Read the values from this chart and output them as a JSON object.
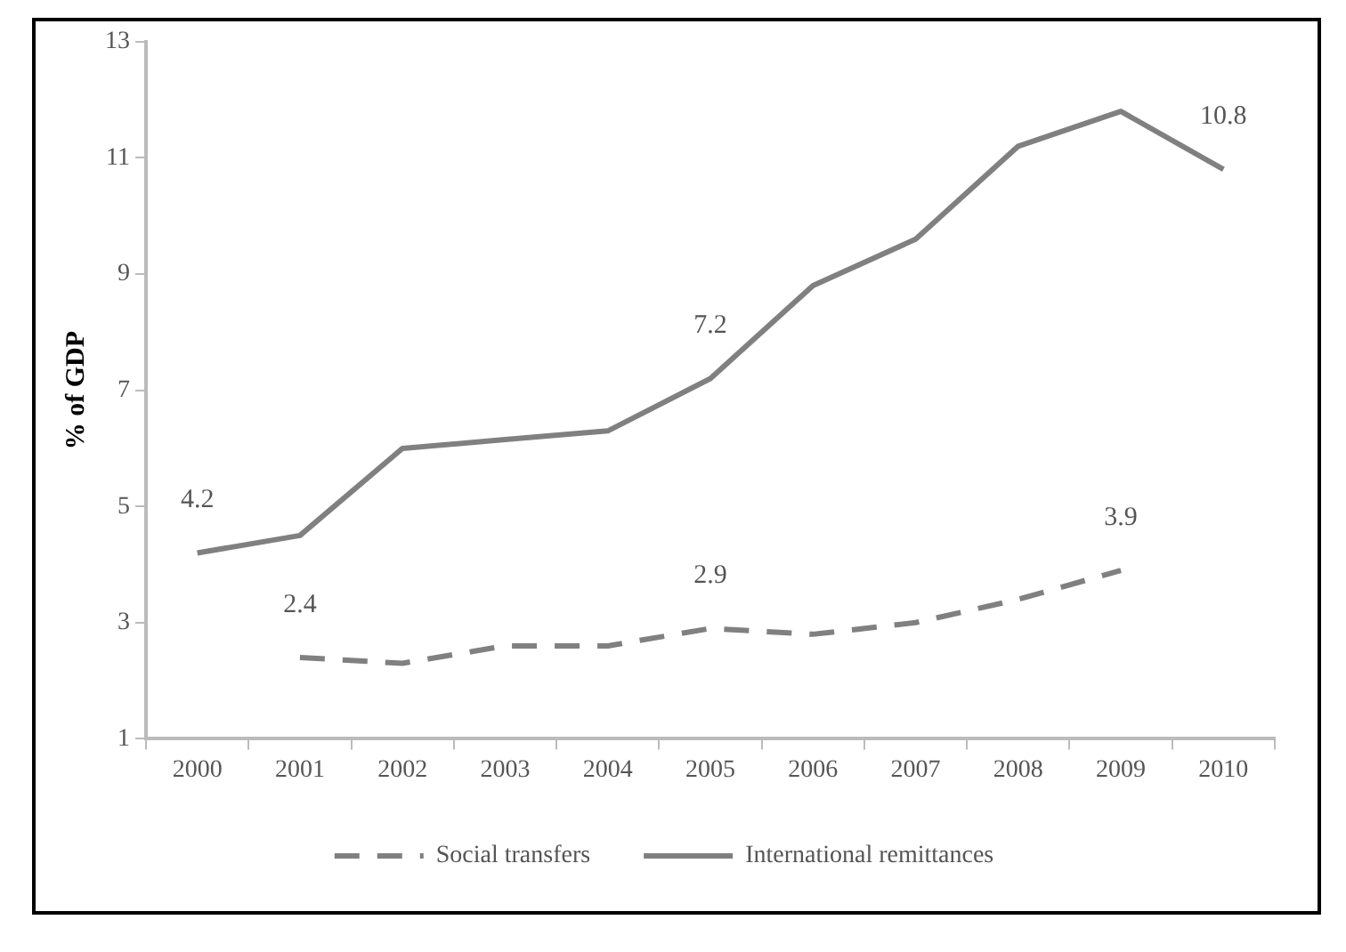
{
  "chart_data": {
    "type": "line",
    "ylabel": "% of GDP",
    "categories": [
      "2000",
      "2001",
      "2002",
      "2003",
      "2004",
      "2005",
      "2006",
      "2007",
      "2008",
      "2009",
      "2010"
    ],
    "series": [
      {
        "name": "Social transfers",
        "color": "#808080",
        "line_style": "dashed",
        "values": [
          null,
          2.4,
          2.3,
          2.6,
          2.6,
          2.9,
          2.8,
          3.0,
          3.4,
          3.9,
          null
        ],
        "value_labels": [
          null,
          "2.4",
          null,
          null,
          null,
          "2.9",
          null,
          null,
          null,
          "3.9",
          null
        ]
      },
      {
        "name": "International remittances",
        "color": "#808080",
        "line_style": "solid",
        "values": [
          4.2,
          4.5,
          6.0,
          6.15,
          6.3,
          7.2,
          8.8,
          9.6,
          11.2,
          11.8,
          10.8
        ],
        "value_labels": [
          "4.2",
          null,
          null,
          null,
          null,
          "7.2",
          null,
          null,
          null,
          null,
          "10.8"
        ]
      }
    ],
    "ylim": [
      1,
      13
    ],
    "yticks": [
      1,
      3,
      5,
      7,
      9,
      11,
      13
    ],
    "grid": false,
    "legend": "bottom",
    "marker": "none"
  }
}
